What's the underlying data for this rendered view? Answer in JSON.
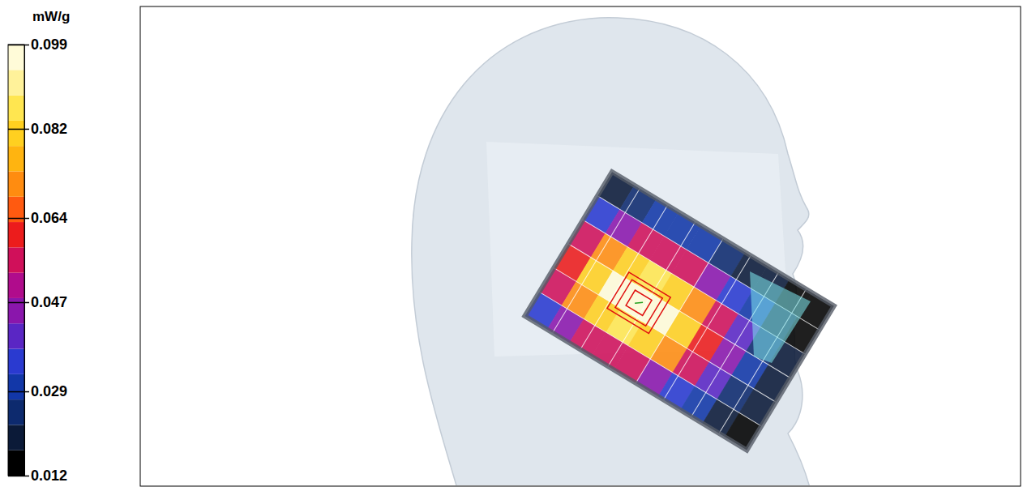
{
  "chart_data": {
    "type": "heatmap",
    "colorbar_label": "mW/g",
    "colorbar_range": [
      0.012,
      0.099
    ],
    "colorbar_ticks": [
      0.012,
      0.029,
      0.047,
      0.064,
      0.082,
      0.099
    ],
    "cells": [
      [
        0.022,
        0.026,
        0.029,
        0.03,
        0.029,
        0.026,
        0.022,
        0.019,
        0.016,
        0.014
      ],
      [
        0.037,
        0.046,
        0.053,
        0.056,
        0.053,
        0.046,
        0.037,
        0.028,
        0.021,
        0.016
      ],
      [
        0.053,
        0.069,
        0.081,
        0.085,
        0.081,
        0.069,
        0.053,
        0.038,
        0.027,
        0.019
      ],
      [
        0.061,
        0.079,
        0.094,
        0.099,
        0.094,
        0.079,
        0.061,
        0.043,
        0.03,
        0.021
      ],
      [
        0.053,
        0.069,
        0.081,
        0.085,
        0.081,
        0.069,
        0.053,
        0.038,
        0.027,
        0.019
      ],
      [
        0.037,
        0.046,
        0.053,
        0.056,
        0.053,
        0.046,
        0.037,
        0.028,
        0.021,
        0.016
      ]
    ]
  }
}
